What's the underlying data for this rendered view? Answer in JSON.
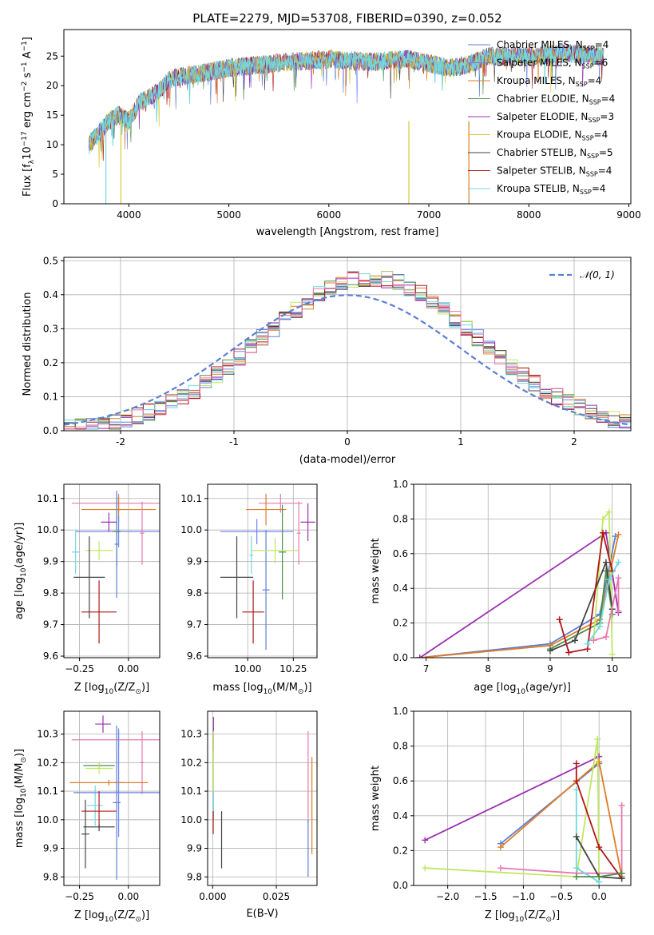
{
  "colors": {
    "cm": "#5b7fd4",
    "sm": "#6d84f0",
    "km": "#e07b24",
    "ce": "#4a8f4a",
    "se": "#9b30b0",
    "ke": "#d8c830",
    "cs": "#444444",
    "ss": "#b01818",
    "ks": "#6fd8e0",
    "pink": "#e878b0",
    "lime": "#c0e860",
    "gauss": "#5b7fd4"
  },
  "chart_data": [
    {
      "id": "spectrum",
      "type": "line",
      "title": "PLATE=2279, MJD=53708, FIBERID=0390, z=0.052",
      "xlabel": "wavelength [Angstrom, rest frame]",
      "ylabel_parts": [
        "Flux [f",
        "λ",
        "10",
        "−17",
        " erg cm",
        "−2",
        " s",
        "−1",
        " A",
        "−1",
        "]"
      ],
      "xlim": [
        3350,
        9020
      ],
      "ylim": [
        0,
        29.5
      ],
      "xticks": [
        4000,
        5000,
        6000,
        7000,
        8000,
        9000
      ],
      "yticks": [
        0,
        5,
        10,
        15,
        20,
        25
      ],
      "grid": false,
      "legend_position": "top-right",
      "series": [
        {
          "name": "Chabrier MILES",
          "nssp": "4",
          "color": "#5b7fd4"
        },
        {
          "name": "Salpeter MILES",
          "nssp": "6",
          "color": "#6d84f0"
        },
        {
          "name": "Kroupa MILES",
          "nssp": "4",
          "color": "#e07b24"
        },
        {
          "name": "Chabrier ELODIE",
          "nssp": "4",
          "color": "#4a8f4a"
        },
        {
          "name": "Salpeter ELODIE",
          "nssp": "3",
          "color": "#9b30b0"
        },
        {
          "name": "Kroupa ELODIE",
          "nssp": "4",
          "color": "#d8c830"
        },
        {
          "name": "Chabrier STELIB",
          "nssp": "5",
          "color": "#444444"
        },
        {
          "name": "Salpeter STELIB",
          "nssp": "4",
          "color": "#b01818"
        },
        {
          "name": "Kroupa STELIB",
          "nssp": "4",
          "color": "#6fd8e0"
        }
      ],
      "continuum": {
        "x": [
          3600,
          3700,
          3800,
          3900,
          4000,
          4100,
          4200,
          4300,
          4400,
          4500,
          4700,
          5000,
          5300,
          5600,
          6000,
          6400,
          6800,
          7200,
          7400,
          7600,
          8000,
          8400,
          8700
        ],
        "y": [
          10,
          12,
          14,
          15,
          14,
          17,
          18,
          19,
          21,
          21.5,
          22,
          23,
          23.5,
          24,
          24.5,
          24,
          24.5,
          23,
          23.5,
          25,
          25,
          25.5,
          25
        ]
      },
      "spectrum_range": [
        3600,
        8750
      ],
      "cut_edges": [
        {
          "x": 3770,
          "color": "#6fd8e0"
        },
        {
          "x": 3920,
          "color": "#d8c830"
        },
        {
          "x": 6800,
          "color": "#d8c830"
        },
        {
          "x": 7400,
          "color": "#e07b24"
        }
      ]
    },
    {
      "id": "residuals",
      "type": "line",
      "xlabel": "(data-model)/error",
      "ylabel": "Normed distribution",
      "xlim": [
        -2.5,
        2.5
      ],
      "ylim": [
        0,
        0.51
      ],
      "xticks": [
        -2,
        -1,
        0,
        1,
        2
      ],
      "yticks": [
        0.0,
        0.1,
        0.2,
        0.3,
        0.4,
        0.5
      ],
      "grid": true,
      "legend_position": "top-right",
      "legend": "𝒩(0, 1)",
      "reference": "standard normal density",
      "bin_width": 0.1,
      "bin_range": [
        -2.5,
        2.5
      ]
    },
    {
      "id": "age-Z",
      "type": "scatter",
      "xlabel_parts": [
        "Z [log",
        "10",
        "(Z/Z",
        "⊙",
        ")]"
      ],
      "ylabel_parts": [
        "age  [log",
        "10",
        "(age/yr)]"
      ],
      "xlim": [
        -0.33,
        0.16
      ],
      "ylim": [
        9.595,
        10.145
      ],
      "xticks": [
        -0.25,
        0.0
      ],
      "xtick_labels": [
        "−0.25",
        "0.00"
      ],
      "yticks": [
        9.6,
        9.7,
        9.8,
        9.9,
        10.0,
        10.1
      ],
      "grid": true,
      "points": [
        {
          "x": -0.05,
          "xe": 0.24,
          "y": 10.085,
          "ye": 0.03,
          "color": "#e878b0"
        },
        {
          "x": -0.05,
          "xe": 0.19,
          "y": 10.065,
          "ye": 0.04,
          "color": "#e07b24"
        },
        {
          "x": -0.1,
          "xe": 0.04,
          "y": 10.025,
          "ye": 0.03,
          "color": "#9b30b0"
        },
        {
          "x": -0.05,
          "xe": 0.22,
          "y": 9.995,
          "ye": 0.05,
          "color": "#6d84f0"
        },
        {
          "x": -0.06,
          "xe": 0.02,
          "y": 9.995,
          "ye": 0.11,
          "color": "#4a8f4a"
        },
        {
          "x": -0.06,
          "xe": 0.01,
          "y": 9.955,
          "ye": 0.17,
          "color": "#5b7fd4"
        },
        {
          "x": 0.07,
          "xe": 0.01,
          "y": 9.99,
          "ye": 0.1,
          "color": "#e878b0"
        },
        {
          "x": -0.15,
          "xe": 0.07,
          "y": 9.935,
          "ye": 0.03,
          "color": "#c0e860"
        },
        {
          "x": -0.27,
          "xe": 0.02,
          "y": 9.93,
          "ye": 0.07,
          "color": "#6fd8e0"
        },
        {
          "x": -0.2,
          "xe": 0.08,
          "y": 9.85,
          "ye": 0.13,
          "color": "#444444"
        },
        {
          "x": -0.15,
          "xe": 0.09,
          "y": 9.74,
          "ye": 0.1,
          "color": "#b01818"
        }
      ]
    },
    {
      "id": "age-mass",
      "type": "scatter",
      "xlabel_parts": [
        "mass [log",
        "10",
        "(M/M",
        "⊙",
        ")]"
      ],
      "xlim": [
        9.78,
        10.38
      ],
      "ylim": [
        9.595,
        10.145
      ],
      "xticks": [
        10.0,
        10.25
      ],
      "xtick_labels": [
        "10.00",
        "10.25"
      ],
      "yticks": [
        9.6,
        9.7,
        9.8,
        9.9,
        10.0,
        10.1
      ],
      "grid": true,
      "points": [
        {
          "x": 10.18,
          "xe": 0.12,
          "y": 10.085,
          "ye": 0.03,
          "color": "#e878b0"
        },
        {
          "x": 10.1,
          "xe": 0.11,
          "y": 10.065,
          "ye": 0.05,
          "color": "#e07b24"
        },
        {
          "x": 10.33,
          "xe": 0.04,
          "y": 10.025,
          "ye": 0.06,
          "color": "#9b30b0"
        },
        {
          "x": 10.05,
          "xe": 0.2,
          "y": 9.995,
          "ye": 0.04,
          "color": "#6d84f0"
        },
        {
          "x": 10.19,
          "xe": 0.02,
          "y": 9.93,
          "ye": 0.15,
          "color": "#4a8f4a"
        },
        {
          "x": 10.1,
          "xe": 0.02,
          "y": 9.81,
          "ye": 0.19,
          "color": "#5b7fd4"
        },
        {
          "x": 10.28,
          "xe": 0.01,
          "y": 9.99,
          "ye": 0.1,
          "color": "#e878b0"
        },
        {
          "x": 10.15,
          "xe": 0.13,
          "y": 9.935,
          "ye": 0.04,
          "color": "#c0e860"
        },
        {
          "x": 10.02,
          "xe": 0.01,
          "y": 9.92,
          "ye": 0.06,
          "color": "#6fd8e0"
        },
        {
          "x": 9.94,
          "xe": 0.09,
          "y": 9.85,
          "ye": 0.13,
          "color": "#444444"
        },
        {
          "x": 10.03,
          "xe": 0.06,
          "y": 9.74,
          "ye": 0.1,
          "color": "#b01818"
        }
      ]
    },
    {
      "id": "weight-age",
      "type": "line",
      "xlabel_parts": [
        "age  [log",
        "10",
        "(age/yr)]"
      ],
      "ylabel": "mass weight",
      "xlim": [
        6.8,
        10.3
      ],
      "ylim": [
        0,
        1.0
      ],
      "xticks": [
        7,
        8,
        9,
        10
      ],
      "yticks": [
        0.0,
        0.2,
        0.4,
        0.6,
        0.8,
        1.0
      ],
      "grid": true,
      "series": [
        {
          "color": "#5b7fd4",
          "x": [
            6.9,
            9.0,
            9.8,
            10.05
          ],
          "y": [
            0.0,
            0.08,
            0.25,
            0.7
          ]
        },
        {
          "color": "#e07b24",
          "x": [
            6.9,
            9.0,
            9.8,
            10.1
          ],
          "y": [
            0.0,
            0.07,
            0.22,
            0.71
          ]
        },
        {
          "color": "#9b30b0",
          "x": [
            6.9,
            9.9,
            10.1
          ],
          "y": [
            0.0,
            0.72,
            0.26
          ]
        },
        {
          "color": "#4a8f4a",
          "x": [
            9.0,
            9.8,
            9.9,
            10.0
          ],
          "y": [
            0.05,
            0.2,
            0.5,
            0.25
          ]
        },
        {
          "color": "#c0e860",
          "x": [
            9.7,
            9.85,
            9.95,
            10.0
          ],
          "y": [
            0.1,
            0.8,
            0.84,
            0.02
          ]
        },
        {
          "color": "#444444",
          "x": [
            9.0,
            9.4,
            9.9,
            10.0
          ],
          "y": [
            0.04,
            0.1,
            0.55,
            0.28
          ]
        },
        {
          "color": "#b01818",
          "x": [
            9.15,
            9.3,
            9.6,
            9.85,
            10.0
          ],
          "y": [
            0.22,
            0.03,
            0.05,
            0.72,
            0.5
          ]
        },
        {
          "color": "#6fd8e0",
          "x": [
            9.6,
            9.8,
            9.95,
            10.1
          ],
          "y": [
            0.08,
            0.18,
            0.45,
            0.55
          ]
        },
        {
          "color": "#e878b0",
          "x": [
            9.7,
            9.9,
            10.1,
            10.1
          ],
          "y": [
            0.1,
            0.12,
            0.46,
            0.27
          ]
        }
      ]
    },
    {
      "id": "mass-Z",
      "type": "scatter",
      "xlabel_parts": [
        "Z [log",
        "10",
        "(Z/Z",
        "⊙",
        ")]"
      ],
      "ylabel_parts": [
        "mass [log",
        "10",
        "(M/M",
        "⊙",
        ")]"
      ],
      "xlim": [
        -0.33,
        0.16
      ],
      "ylim": [
        9.77,
        10.38
      ],
      "xticks": [
        -0.25,
        0.0
      ],
      "xtick_labels": [
        "−0.25",
        "0.00"
      ],
      "yticks": [
        9.8,
        9.9,
        10.0,
        10.1,
        10.2,
        10.3
      ],
      "grid": true,
      "points": [
        {
          "x": -0.13,
          "xe": 0.04,
          "y": 10.335,
          "ye": 0.03,
          "color": "#9b30b0"
        },
        {
          "x": -0.05,
          "xe": 0.24,
          "y": 10.28,
          "ye": 0.03,
          "color": "#e878b0"
        },
        {
          "x": 0.07,
          "xe": 0.01,
          "y": 10.2,
          "ye": 0.11,
          "color": "#e878b0"
        },
        {
          "x": -0.15,
          "xe": 0.08,
          "y": 10.19,
          "ye": 0.01,
          "color": "#4a8f4a"
        },
        {
          "x": -0.15,
          "xe": 0.07,
          "y": 10.18,
          "ye": 0.02,
          "color": "#c0e860"
        },
        {
          "x": -0.05,
          "xe": 0.02,
          "y": 10.13,
          "ye": 0.19,
          "color": "#6d84f0"
        },
        {
          "x": -0.1,
          "xe": 0.2,
          "y": 10.13,
          "ye": 0.01,
          "color": "#e07b24"
        },
        {
          "x": -0.17,
          "xe": 0.04,
          "y": 10.05,
          "ye": 0.07,
          "color": "#6fd8e0"
        },
        {
          "x": -0.06,
          "xe": 0.22,
          "y": 10.095,
          "ye": 0.01,
          "color": "#6d84f0"
        },
        {
          "x": -0.15,
          "xe": 0.09,
          "y": 10.03,
          "ye": 0.07,
          "color": "#b01818"
        },
        {
          "x": -0.06,
          "xe": 0.02,
          "y": 10.06,
          "ye": 0.27,
          "color": "#5b7fd4"
        },
        {
          "x": -0.22,
          "xe": 0.02,
          "y": 9.95,
          "ye": 0.12,
          "color": "#444444"
        },
        {
          "x": -0.15,
          "xe": 0.08,
          "y": 9.975,
          "ye": 0.01,
          "color": "#444444"
        }
      ]
    },
    {
      "id": "mass-ebv",
      "type": "scatter",
      "xlabel": "E(B-V)",
      "xlim": [
        -0.002,
        0.041
      ],
      "ylim": [
        9.77,
        10.38
      ],
      "xticks": [
        0.0,
        0.025
      ],
      "xtick_labels": [
        "0.000",
        "0.025"
      ],
      "yticks": [
        9.8,
        9.9,
        10.0,
        10.1,
        10.2,
        10.3
      ],
      "grid": true,
      "points": [
        {
          "x": 0.0003,
          "y": 10.3,
          "ye": 0.06,
          "color": "#9b30b0"
        },
        {
          "x": 0.0003,
          "y": 10.2,
          "ye": 0.11,
          "color": "#c0e860"
        },
        {
          "x": 0.0003,
          "y": 10.05,
          "ye": 0.05,
          "color": "#6fd8e0"
        },
        {
          "x": 0.0002,
          "y": 9.99,
          "ye": 0.04,
          "color": "#b01818"
        },
        {
          "x": 0.0035,
          "y": 9.93,
          "ye": 0.1,
          "color": "#444444"
        },
        {
          "x": 0.0375,
          "y": 10.15,
          "ye": 0.16,
          "color": "#e878b0"
        },
        {
          "x": 0.0375,
          "y": 9.9,
          "ye": 0.1,
          "color": "#5b7fd4"
        },
        {
          "x": 0.039,
          "y": 10.05,
          "ye": 0.17,
          "color": "#e07b24"
        }
      ]
    },
    {
      "id": "weight-Z",
      "type": "line",
      "xlabel_parts": [
        "Z [log",
        "10",
        "(Z/Z",
        "⊙",
        ")]"
      ],
      "ylabel": "mass weight",
      "xlim": [
        -2.45,
        0.42
      ],
      "ylim": [
        0,
        1.0
      ],
      "xticks": [
        -2.0,
        -1.5,
        -1.0,
        -0.5,
        0.0
      ],
      "xtick_labels": [
        "−2.0",
        "−1.5",
        "−1.0",
        "−0.5",
        "0.0"
      ],
      "yticks": [
        0.0,
        0.2,
        0.4,
        0.6,
        0.8,
        1.0
      ],
      "grid": true,
      "series": [
        {
          "color": "#9b30b0",
          "x": [
            -2.3,
            0.0
          ],
          "y": [
            0.26,
            0.74
          ]
        },
        {
          "color": "#5b7fd4",
          "x": [
            -1.3,
            0.0
          ],
          "y": [
            0.24,
            0.7
          ]
        },
        {
          "color": "#e07b24",
          "x": [
            -1.3,
            0.0,
            0.3
          ],
          "y": [
            0.22,
            0.71,
            0.05
          ]
        },
        {
          "color": "#c0e860",
          "x": [
            -2.3,
            -0.3,
            -0.02,
            0.0
          ],
          "y": [
            0.1,
            0.05,
            0.84,
            0.02
          ]
        },
        {
          "color": "#e878b0",
          "x": [
            -1.3,
            -0.3,
            0.3,
            0.3
          ],
          "y": [
            0.1,
            0.07,
            0.07,
            0.46
          ]
        },
        {
          "color": "#6fd8e0",
          "x": [
            -0.3,
            -0.3,
            0.0
          ],
          "y": [
            0.55,
            0.1,
            0.02
          ]
        },
        {
          "color": "#b01818",
          "x": [
            -0.3,
            -0.3,
            0.0,
            0.3
          ],
          "y": [
            0.7,
            0.6,
            0.22,
            0.04
          ]
        },
        {
          "color": "#444444",
          "x": [
            -0.3,
            0.0,
            0.3
          ],
          "y": [
            0.28,
            0.05,
            0.04
          ]
        },
        {
          "color": "#4a8f4a",
          "x": [
            -0.3,
            0.0,
            0.3
          ],
          "y": [
            0.05,
            0.05,
            0.07
          ]
        }
      ]
    }
  ]
}
